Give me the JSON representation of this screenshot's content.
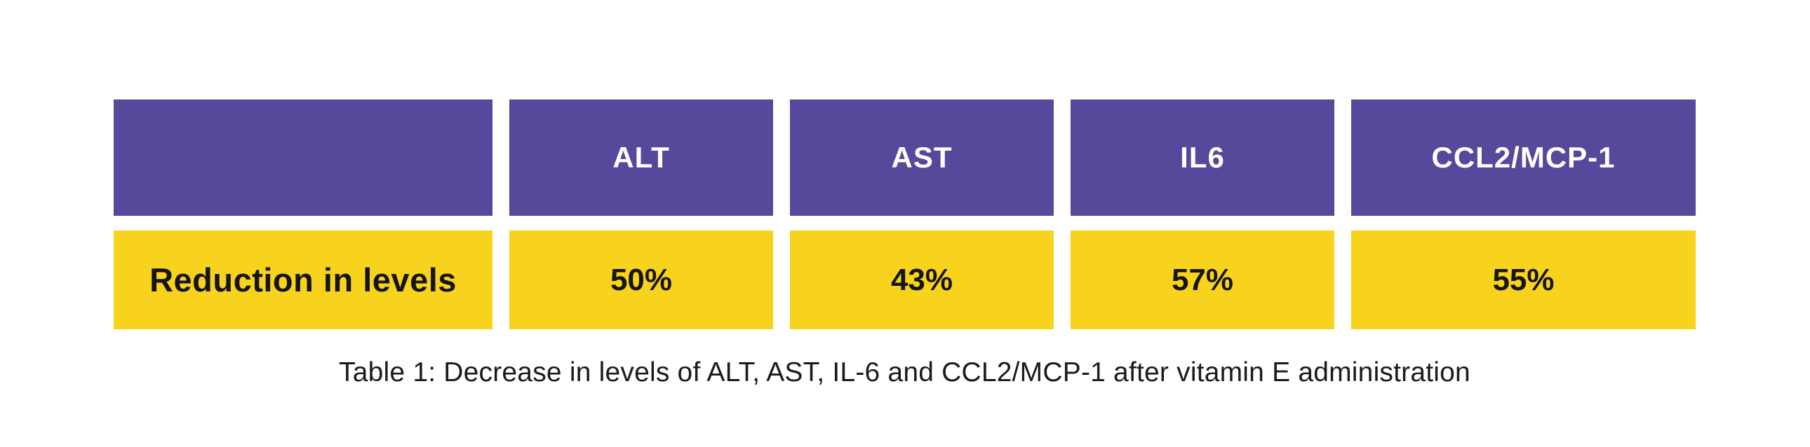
{
  "chart_data": {
    "type": "table",
    "columns": [
      "",
      "ALT",
      "AST",
      "IL6",
      "CCL2/MCP-1"
    ],
    "rows": [
      [
        "Reduction in levels",
        "50%",
        "43%",
        "57%",
        "55%"
      ]
    ],
    "caption": "Table 1: Decrease in levels of ALT, AST, IL-6 and CCL2/MCP-1 after vitamin E administration"
  },
  "colors": {
    "header_bg": "#54499b",
    "header_text": "#ffffff",
    "row_bg": "#f8d31e",
    "row_text": "#151515",
    "caption_text": "#1b1b1b",
    "background": "#ffffff"
  }
}
